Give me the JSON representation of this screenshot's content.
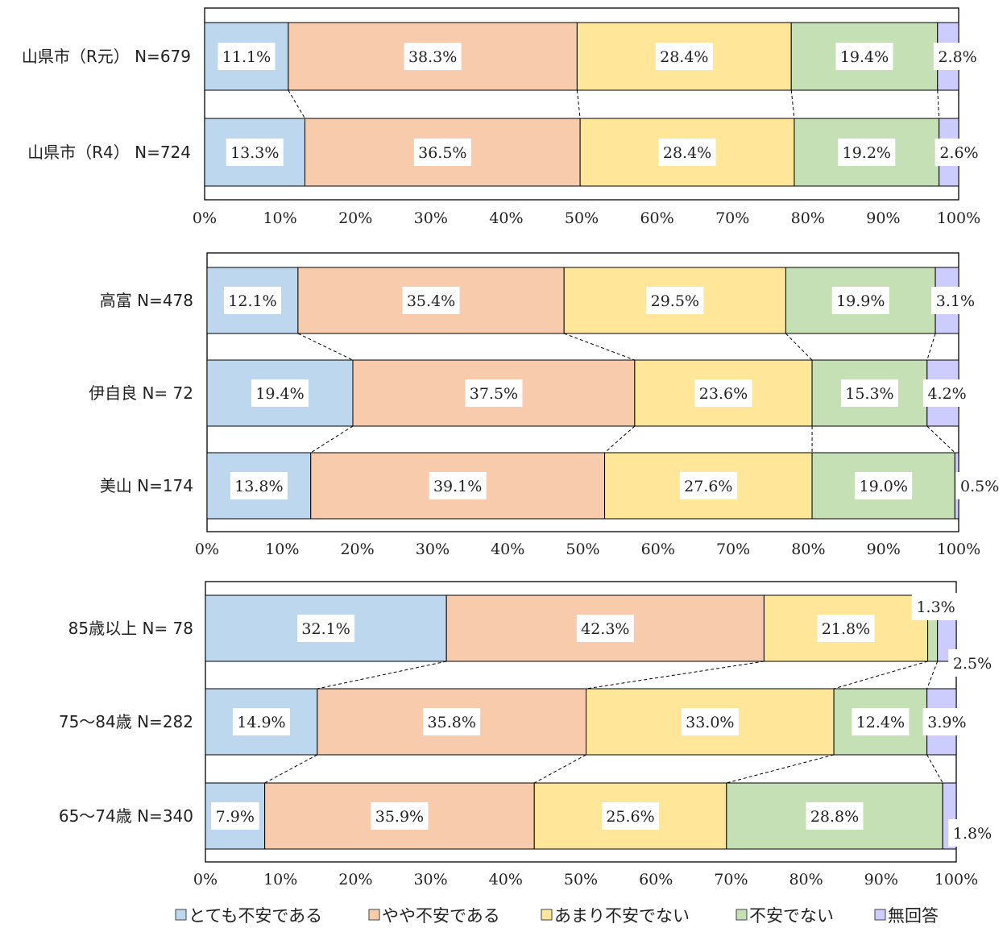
{
  "legend": {
    "items": [
      "とても不安である",
      "やや不安である",
      "あまり不安でない",
      "不安でない",
      "無回答"
    ]
  },
  "colors": [
    "#bdd7ee",
    "#f8cbad",
    "#ffe699",
    "#c5e0b4",
    "#ccccff"
  ],
  "chart_data": [
    {
      "type": "bar",
      "orientation": "horizontal",
      "stacked": "percent",
      "categories": [
        "山県市（R元） N=679",
        "山県市（R4） N=724"
      ],
      "series": [
        {
          "name": "とても不安である",
          "values": [
            11.1,
            13.3
          ]
        },
        {
          "name": "やや不安である",
          "values": [
            38.3,
            36.5
          ]
        },
        {
          "name": "あまり不安でない",
          "values": [
            28.4,
            28.4
          ]
        },
        {
          "name": "不安でない",
          "values": [
            19.4,
            19.2
          ]
        },
        {
          "name": "無回答",
          "values": [
            2.8,
            2.6
          ]
        }
      ],
      "labels": [
        [
          "11.1%",
          "38.3%",
          "28.4%",
          "19.4%",
          "2.8%"
        ],
        [
          "13.3%",
          "36.5%",
          "28.4%",
          "19.2%",
          "2.6%"
        ]
      ],
      "xlim": [
        0,
        100
      ],
      "xticks": [
        "0%",
        "10%",
        "20%",
        "30%",
        "40%",
        "50%",
        "60%",
        "70%",
        "80%",
        "90%",
        "100%"
      ]
    },
    {
      "type": "bar",
      "orientation": "horizontal",
      "stacked": "percent",
      "categories": [
        "高富 N=478",
        "伊自良 N= 72",
        "美山 N=174"
      ],
      "series": [
        {
          "name": "とても不安である",
          "values": [
            12.1,
            19.4,
            13.8
          ]
        },
        {
          "name": "やや不安である",
          "values": [
            35.4,
            37.5,
            39.1
          ]
        },
        {
          "name": "あまり不安でない",
          "values": [
            29.5,
            23.6,
            27.6
          ]
        },
        {
          "name": "不安でない",
          "values": [
            19.9,
            15.3,
            19.0
          ]
        },
        {
          "name": "無回答",
          "values": [
            3.1,
            4.2,
            0.5
          ]
        }
      ],
      "labels": [
        [
          "12.1%",
          "35.4%",
          "29.5%",
          "19.9%",
          "3.1%"
        ],
        [
          "19.4%",
          "37.5%",
          "23.6%",
          "15.3%",
          "4.2%"
        ],
        [
          "13.8%",
          "39.1%",
          "27.6%",
          "19.0%",
          "0.5%"
        ]
      ],
      "xlim": [
        0,
        100
      ],
      "xticks": [
        "0%",
        "10%",
        "20%",
        "30%",
        "40%",
        "50%",
        "60%",
        "70%",
        "80%",
        "90%",
        "100%"
      ]
    },
    {
      "type": "bar",
      "orientation": "horizontal",
      "stacked": "percent",
      "categories": [
        "85歳以上 N= 78",
        "75～84歳 N=282",
        "65～74歳 N=340"
      ],
      "series": [
        {
          "name": "とても不安である",
          "values": [
            32.1,
            14.9,
            7.9
          ]
        },
        {
          "name": "やや不安である",
          "values": [
            42.3,
            35.8,
            35.9
          ]
        },
        {
          "name": "あまり不安でない",
          "values": [
            21.8,
            33.0,
            25.6
          ]
        },
        {
          "name": "不安でない",
          "values": [
            1.3,
            12.4,
            28.8
          ]
        },
        {
          "name": "無回答",
          "values": [
            2.5,
            3.9,
            1.8
          ]
        }
      ],
      "labels": [
        [
          "32.1%",
          "42.3%",
          "21.8%",
          "1.3%",
          "2.5%"
        ],
        [
          "14.9%",
          "35.8%",
          "33.0%",
          "12.4%",
          "3.9%"
        ],
        [
          "7.9%",
          "35.9%",
          "25.6%",
          "28.8%",
          "1.8%"
        ]
      ],
      "xlim": [
        0,
        100
      ],
      "xticks": [
        "0%",
        "10%",
        "20%",
        "30%",
        "40%",
        "50%",
        "60%",
        "70%",
        "80%",
        "90%",
        "100%"
      ]
    }
  ]
}
